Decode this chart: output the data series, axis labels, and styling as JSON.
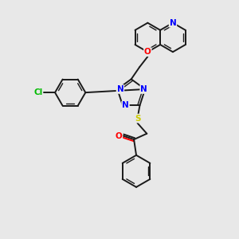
{
  "bg_color": "#e8e8e8",
  "bond_color": "#1a1a1a",
  "N_color": "#0000ff",
  "O_color": "#ff0000",
  "S_color": "#cccc00",
  "Cl_color": "#00bb00",
  "figsize": [
    3.0,
    3.0
  ],
  "dpi": 100,
  "xlim": [
    0,
    10
  ],
  "ylim": [
    0,
    10
  ]
}
